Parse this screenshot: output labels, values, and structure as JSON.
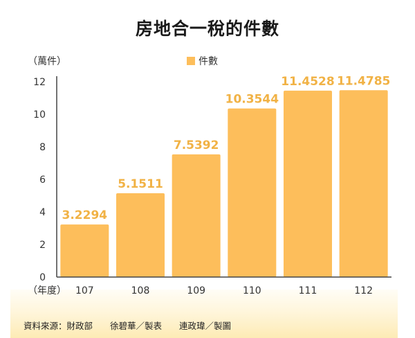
{
  "chart_data": {
    "type": "bar",
    "title": "房地合一稅的件數",
    "ylabel": "（萬件）",
    "xlabel": "（年度）",
    "legend": [
      "件數"
    ],
    "legend_position": "top",
    "categories": [
      "107",
      "108",
      "109",
      "110",
      "111",
      "112"
    ],
    "values": [
      3.2294,
      5.1511,
      7.5392,
      10.3544,
      11.4528,
      11.4785
    ],
    "value_labels": [
      "3.2294",
      "5.1511",
      "7.5392",
      "10.3544",
      "11.4528",
      "11.4785"
    ],
    "ylim": [
      0,
      12
    ],
    "yticks": [
      "0",
      "2",
      "4",
      "6",
      "8",
      "10",
      "12"
    ],
    "grid": false,
    "colors": {
      "bar": "#fdbe5b",
      "value_label": "#f1b245"
    }
  },
  "footer": {
    "source": "資料來源：財政部　　徐碧華／製表　　連政瑋／製圖"
  }
}
